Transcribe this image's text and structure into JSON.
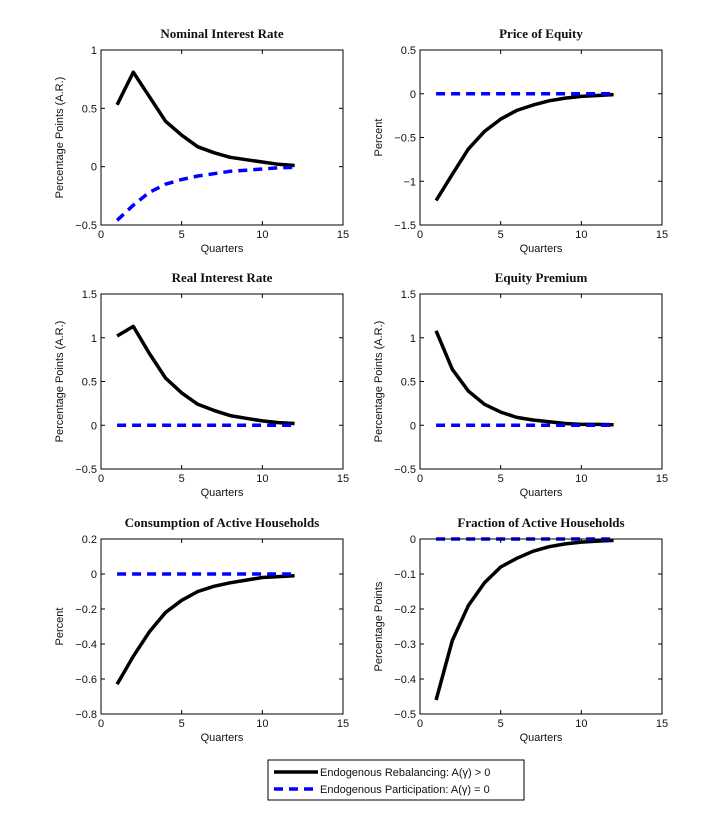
{
  "chart_data": [
    {
      "type": "line",
      "title": "Nominal Interest Rate",
      "xlabel": "Quarters",
      "ylabel": "Percentage Points (A.R.)",
      "xlim": [
        0,
        15
      ],
      "ylim": [
        -0.5,
        1
      ],
      "xticks": [
        0,
        5,
        10,
        15
      ],
      "yticks": [
        -0.5,
        0,
        0.5,
        1
      ],
      "ytick_labels": [
        "−0.5",
        "0",
        "0.5",
        "1"
      ],
      "x": [
        1,
        2,
        3,
        4,
        5,
        6,
        7,
        8,
        9,
        10,
        11,
        12
      ],
      "series": [
        {
          "name": "Endogenous Rebalancing: A(γ) > 0",
          "values": [
            0.53,
            0.81,
            0.6,
            0.39,
            0.27,
            0.17,
            0.12,
            0.08,
            0.06,
            0.04,
            0.02,
            0.01
          ]
        },
        {
          "name": "Endogenous Participation: A(γ) = 0",
          "values": [
            -0.46,
            -0.33,
            -0.22,
            -0.15,
            -0.11,
            -0.08,
            -0.06,
            -0.04,
            -0.03,
            -0.02,
            -0.01,
            -0.005
          ]
        }
      ],
      "grid": false
    },
    {
      "type": "line",
      "title": "Price of Equity",
      "xlabel": "Quarters",
      "ylabel": "Percent",
      "xlim": [
        0,
        15
      ],
      "ylim": [
        -1.5,
        0.5
      ],
      "xticks": [
        0,
        5,
        10,
        15
      ],
      "yticks": [
        -1.5,
        -1,
        -0.5,
        0,
        0.5
      ],
      "ytick_labels": [
        "−1.5",
        "−1",
        "−0.5",
        "0",
        "0.5"
      ],
      "x": [
        1,
        2,
        3,
        4,
        5,
        6,
        7,
        8,
        9,
        10,
        11,
        12
      ],
      "series": [
        {
          "name": "Endogenous Rebalancing: A(γ) > 0",
          "values": [
            -1.22,
            -0.92,
            -0.63,
            -0.43,
            -0.29,
            -0.19,
            -0.13,
            -0.08,
            -0.05,
            -0.03,
            -0.02,
            -0.01
          ]
        },
        {
          "name": "Endogenous Participation: A(γ) = 0",
          "values": [
            0,
            0,
            0,
            0,
            0,
            0,
            0,
            0,
            0,
            0,
            0,
            0
          ]
        }
      ],
      "grid": false
    },
    {
      "type": "line",
      "title": "Real Interest Rate",
      "xlabel": "Quarters",
      "ylabel": "Percentage Points (A.R.)",
      "xlim": [
        0,
        15
      ],
      "ylim": [
        -0.5,
        1.5
      ],
      "xticks": [
        0,
        5,
        10,
        15
      ],
      "yticks": [
        -0.5,
        0,
        0.5,
        1,
        1.5
      ],
      "ytick_labels": [
        "−0.5",
        "0",
        "0.5",
        "1",
        "1.5"
      ],
      "x": [
        1,
        2,
        3,
        4,
        5,
        6,
        7,
        8,
        9,
        10,
        11,
        12
      ],
      "series": [
        {
          "name": "Endogenous Rebalancing: A(γ) > 0",
          "values": [
            1.02,
            1.13,
            0.82,
            0.54,
            0.37,
            0.24,
            0.17,
            0.11,
            0.08,
            0.05,
            0.03,
            0.02
          ]
        },
        {
          "name": "Endogenous Participation: A(γ) = 0",
          "values": [
            0,
            0,
            0,
            0,
            0,
            0,
            0,
            0,
            0,
            0,
            0,
            0
          ]
        }
      ],
      "grid": false
    },
    {
      "type": "line",
      "title": "Equity Premium",
      "xlabel": "Quarters",
      "ylabel": "Percentage Points (A.R.)",
      "xlim": [
        0,
        15
      ],
      "ylim": [
        -0.5,
        1.5
      ],
      "xticks": [
        0,
        5,
        10,
        15
      ],
      "yticks": [
        -0.5,
        0,
        0.5,
        1,
        1.5
      ],
      "ytick_labels": [
        "−0.5",
        "0",
        "0.5",
        "1",
        "1.5"
      ],
      "x": [
        1,
        2,
        3,
        4,
        5,
        6,
        7,
        8,
        9,
        10,
        11,
        12
      ],
      "series": [
        {
          "name": "Endogenous Rebalancing: A(γ) > 0",
          "values": [
            1.08,
            0.64,
            0.39,
            0.24,
            0.15,
            0.09,
            0.06,
            0.04,
            0.02,
            0.01,
            0.01,
            0.005
          ]
        },
        {
          "name": "Endogenous Participation: A(γ) = 0",
          "values": [
            0,
            0,
            0,
            0,
            0,
            0,
            0,
            0,
            0,
            0,
            0,
            0
          ]
        }
      ],
      "grid": false
    },
    {
      "type": "line",
      "title": "Consumption of Active Households",
      "xlabel": "Quarters",
      "ylabel": "Percent",
      "xlim": [
        0,
        15
      ],
      "ylim": [
        -0.8,
        0.2
      ],
      "xticks": [
        0,
        5,
        10,
        15
      ],
      "yticks": [
        -0.8,
        -0.6,
        -0.4,
        -0.2,
        0,
        0.2
      ],
      "ytick_labels": [
        "−0.8",
        "−0.6",
        "−0.4",
        "−0.2",
        "0",
        "0.2"
      ],
      "x": [
        1,
        2,
        3,
        4,
        5,
        6,
        7,
        8,
        9,
        10,
        11,
        12
      ],
      "series": [
        {
          "name": "Endogenous Rebalancing: A(γ) > 0",
          "values": [
            -0.63,
            -0.47,
            -0.33,
            -0.22,
            -0.15,
            -0.1,
            -0.07,
            -0.05,
            -0.035,
            -0.02,
            -0.015,
            -0.01
          ]
        },
        {
          "name": "Endogenous Participation: A(γ) = 0",
          "values": [
            0,
            0,
            0,
            0,
            0,
            0,
            0,
            0,
            0,
            0,
            0,
            0
          ]
        }
      ],
      "grid": false
    },
    {
      "type": "line",
      "title": "Fraction of Active Households",
      "xlabel": "Quarters",
      "ylabel": "Percentage Points",
      "xlim": [
        0,
        15
      ],
      "ylim": [
        -0.5,
        0
      ],
      "xticks": [
        0,
        5,
        10,
        15
      ],
      "yticks": [
        -0.5,
        -0.4,
        -0.3,
        -0.2,
        -0.1,
        0
      ],
      "ytick_labels": [
        "−0.5",
        "−0.4",
        "−0.3",
        "−0.2",
        "−0.1",
        "0"
      ],
      "x": [
        1,
        2,
        3,
        4,
        5,
        6,
        7,
        8,
        9,
        10,
        11,
        12
      ],
      "series": [
        {
          "name": "Endogenous Rebalancing: A(γ) > 0",
          "values": [
            -0.46,
            -0.29,
            -0.19,
            -0.125,
            -0.08,
            -0.055,
            -0.035,
            -0.022,
            -0.014,
            -0.009,
            -0.006,
            -0.004
          ]
        },
        {
          "name": "Endogenous Participation: A(γ) = 0",
          "values": [
            0,
            0,
            0,
            0,
            0,
            0,
            0,
            0,
            0,
            0,
            0,
            0
          ]
        }
      ],
      "grid": false
    }
  ],
  "legend": {
    "placement": "bottom-center",
    "entries": [
      {
        "label": "Endogenous Rebalancing: A(γ) > 0",
        "color": "#000000",
        "style": "solid"
      },
      {
        "label": "Endogenous Participation: A(γ) = 0",
        "color": "#0000ff",
        "style": "dashed"
      }
    ]
  },
  "colors": {
    "series_solid": "#000000",
    "series_dashed": "#0000ff"
  }
}
